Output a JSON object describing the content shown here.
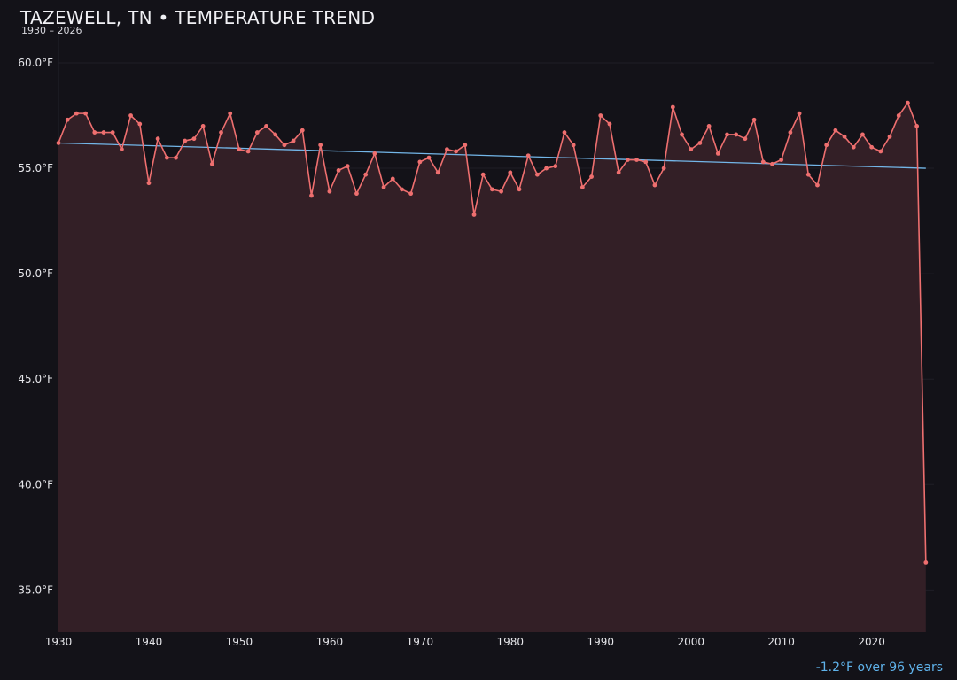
{
  "chart_data": {
    "type": "line",
    "title": "TAZEWELL, TN • TEMPERATURE TREND",
    "subtitle": "1930 – 2026",
    "xlabel": "",
    "ylabel": "",
    "xlim": [
      1930,
      2026.9
    ],
    "ylim": [
      33,
      61.3
    ],
    "x_ticks": [
      1930,
      1940,
      1950,
      1960,
      1970,
      1980,
      1990,
      2000,
      2010,
      2020
    ],
    "y_ticks": [
      35,
      40,
      45,
      50,
      55,
      60
    ],
    "y_tick_labels": [
      "35.0°F",
      "40.0°F",
      "45.0°F",
      "50.0°F",
      "55.0°F",
      "60.0°F"
    ],
    "grid": "horizontal",
    "series": [
      {
        "x": [
          1930,
          1931,
          1932,
          1933,
          1934,
          1935,
          1936,
          1937,
          1938,
          1939,
          1940,
          1941,
          1942,
          1943,
          1944,
          1945,
          1946,
          1947,
          1948,
          1949,
          1950,
          1951,
          1952,
          1953,
          1954,
          1955,
          1956,
          1957,
          1958,
          1959,
          1960,
          1961,
          1962,
          1963,
          1964,
          1965,
          1966,
          1967,
          1968,
          1969,
          1970,
          1971,
          1972,
          1973,
          1974,
          1975,
          1976,
          1977,
          1978,
          1979,
          1980,
          1981,
          1982,
          1983,
          1984,
          1985,
          1986,
          1987,
          1988,
          1989,
          1990,
          1991,
          1992,
          1993,
          1994,
          1995,
          1996,
          1997,
          1998,
          1999,
          2000,
          2001,
          2002,
          2003,
          2004,
          2005,
          2006,
          2007,
          2008,
          2009,
          2010,
          2011,
          2012,
          2013,
          2014,
          2015,
          2016,
          2017,
          2018,
          2019,
          2020,
          2021,
          2022,
          2023,
          2024,
          2025,
          2026
        ],
        "values": [
          56.2,
          57.3,
          57.6,
          57.6,
          56.7,
          56.7,
          56.7,
          55.9,
          57.5,
          57.1,
          54.3,
          56.4,
          55.5,
          55.5,
          56.3,
          56.4,
          57.0,
          55.2,
          56.7,
          57.6,
          55.9,
          55.8,
          56.7,
          57.0,
          56.6,
          56.1,
          56.3,
          56.8,
          53.7,
          56.1,
          53.9,
          54.9,
          55.1,
          53.8,
          54.7,
          55.7,
          54.1,
          54.5,
          54.0,
          53.8,
          55.3,
          55.5,
          54.8,
          55.9,
          55.8,
          56.1,
          52.8,
          54.7,
          54.0,
          53.9,
          54.8,
          54.0,
          55.6,
          54.7,
          55.0,
          55.1,
          56.7,
          56.1,
          54.1,
          54.6,
          57.5,
          57.1,
          54.8,
          55.4,
          55.4,
          55.3,
          54.2,
          55.0,
          57.9,
          56.6,
          55.9,
          56.2,
          57.0,
          55.7,
          56.6,
          56.6,
          56.4,
          57.3,
          55.3,
          55.2,
          55.4,
          56.7,
          57.6,
          54.7,
          54.2,
          56.1,
          56.8,
          56.5,
          56.0,
          56.6,
          56.0,
          55.8,
          56.5,
          57.5,
          58.1,
          57.0,
          36.3
        ],
        "color": "#ee6f6f",
        "fill": "#331f26"
      }
    ],
    "trend": {
      "x": [
        1930,
        2026
      ],
      "values": [
        56.2,
        55.0
      ],
      "color": "#73b6e8"
    },
    "annotation": "-1.2°F over 96 years"
  },
  "footer": {
    "text": "-1.2°F over 96 years",
    "color": "#5fb2ea"
  }
}
